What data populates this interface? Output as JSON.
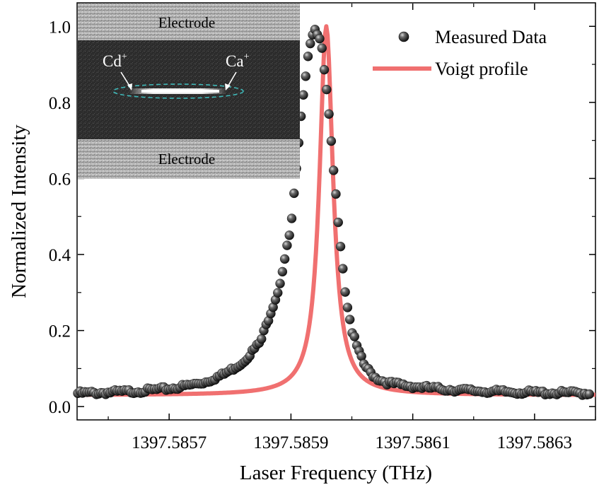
{
  "chart_data": {
    "type": "scatter",
    "xlabel": "Laser Frequency (THz)",
    "ylabel": "Normalized Intensity",
    "xlim": [
      1397.58555,
      1397.5864
    ],
    "ylim": [
      -0.035,
      1.06
    ],
    "x_ticks": [
      1397.5857,
      1397.5859,
      1397.5861,
      1397.5863
    ],
    "x_tick_labels": [
      "1397.5857",
      "1397.5859",
      "1397.5861",
      "1397.5863"
    ],
    "y_ticks": [
      0.0,
      0.2,
      0.4,
      0.6,
      0.8,
      1.0
    ],
    "y_tick_labels": [
      "0.0",
      "0.2",
      "0.4",
      "0.6",
      "0.8",
      "1.0"
    ],
    "legend": {
      "placement": "top-right",
      "entries": [
        {
          "label": "Measured Data",
          "marker": "sphere"
        },
        {
          "label": "Voigt profile",
          "marker": "line"
        }
      ]
    },
    "series": [
      {
        "name": "Measured Data",
        "kind": "points",
        "color": "#1a1a1a",
        "x": [
          1397.58555,
          1397.58558,
          1397.58561,
          1397.58564,
          1397.58567,
          1397.5857,
          1397.58573,
          1397.58576,
          1397.58579,
          1397.58582,
          1397.58585,
          1397.58588,
          1397.5859,
          1397.58591,
          1397.58592,
          1397.58593,
          1397.58594,
          1397.58595,
          1397.58596,
          1397.58597,
          1397.58598,
          1397.58599,
          1397.586,
          1397.58601,
          1397.58602,
          1397.58603,
          1397.58604,
          1397.58606,
          1397.58609,
          1397.58612,
          1397.58615,
          1397.58618,
          1397.58621,
          1397.58624,
          1397.58627,
          1397.5863,
          1397.58633,
          1397.58636,
          1397.58639
        ],
        "y": [
          0.035,
          0.036,
          0.038,
          0.04,
          0.043,
          0.047,
          0.055,
          0.065,
          0.085,
          0.115,
          0.17,
          0.31,
          0.47,
          0.64,
          0.82,
          0.95,
          1.0,
          0.95,
          0.81,
          0.62,
          0.45,
          0.29,
          0.2,
          0.15,
          0.11,
          0.09,
          0.075,
          0.062,
          0.055,
          0.05,
          0.046,
          0.043,
          0.041,
          0.039,
          0.038,
          0.037,
          0.036,
          0.036,
          0.035
        ]
      },
      {
        "name": "Voigt profile",
        "kind": "line",
        "color": "#f07070",
        "center": 1397.585958,
        "hwhm": 1.35e-05,
        "amplitude": 0.97,
        "baseline": 0.03
      }
    ],
    "inset": {
      "labels": {
        "top_electrode": "Electrode",
        "bottom_electrode": "Electrode",
        "ion_left": "Cd",
        "ion_right": "Ca",
        "charge": "+"
      }
    }
  }
}
